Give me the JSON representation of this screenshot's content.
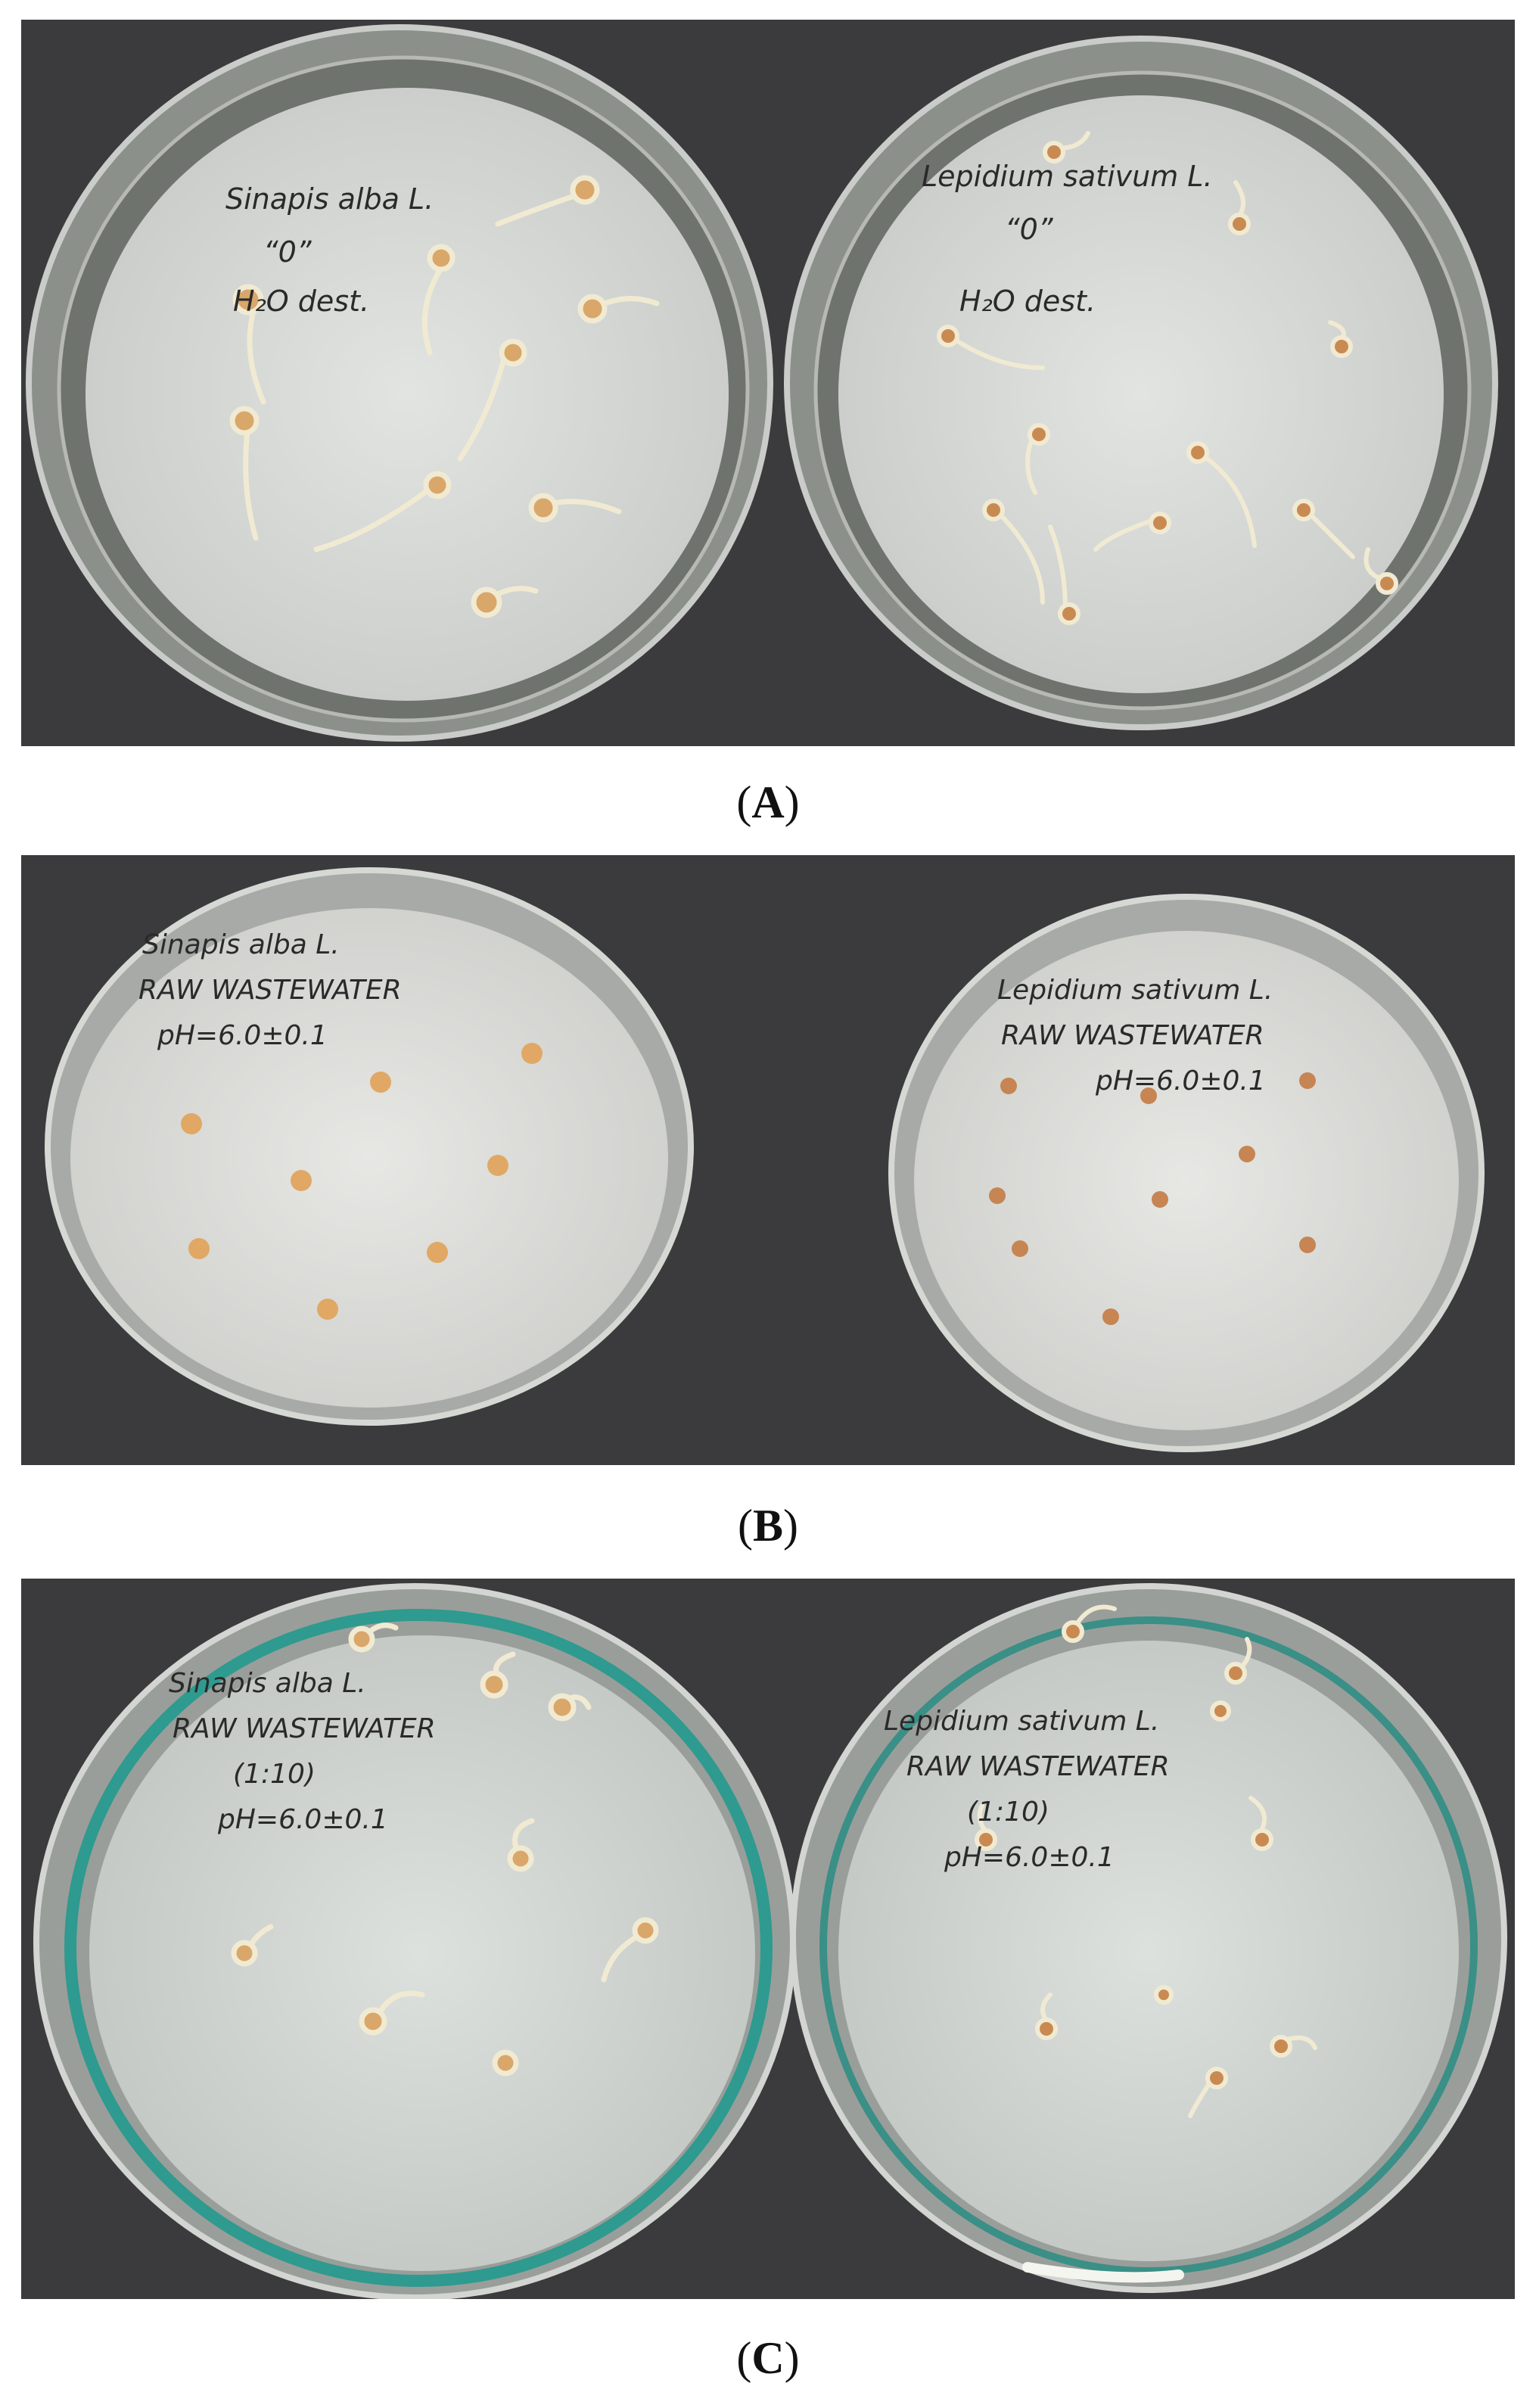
{
  "panels": [
    {
      "id": "A",
      "label": "A",
      "left_dish": {
        "lines": [
          "Sinapis alba L.",
          "“0”",
          "H₂O dest."
        ]
      },
      "right_dish": {
        "lines": [
          "Lepidium sativum L.",
          "“0”",
          "H₂O dest."
        ]
      }
    },
    {
      "id": "B",
      "label": "B",
      "left_dish": {
        "lines": [
          "Sinapis alba L.",
          "RAW WASTEWATER",
          "pH=6.0±0.1"
        ]
      },
      "right_dish": {
        "lines": [
          "Lepidium sativum L.",
          "RAW WASTEWATER",
          "pH=6.0±0.1"
        ]
      }
    },
    {
      "id": "C",
      "label": "C",
      "left_dish": {
        "lines": [
          "Sinapis alba L.",
          "RAW WASTEWATER",
          "(1:10)",
          "pH=6.0±0.1"
        ]
      },
      "right_dish": {
        "lines": [
          "Lepidium sativum L.",
          "RAW WASTEWATER",
          "(1:10)",
          "pH=6.0±0.1"
        ]
      }
    }
  ],
  "colors": {
    "background_surface": "#3b3b3d",
    "filter_paper": "#d9dbd8",
    "dish_rim": "#bfc2bf",
    "rim_teal": "#2f9a8f",
    "seed": "#d9a76a",
    "sprout": "#f1ead2"
  }
}
